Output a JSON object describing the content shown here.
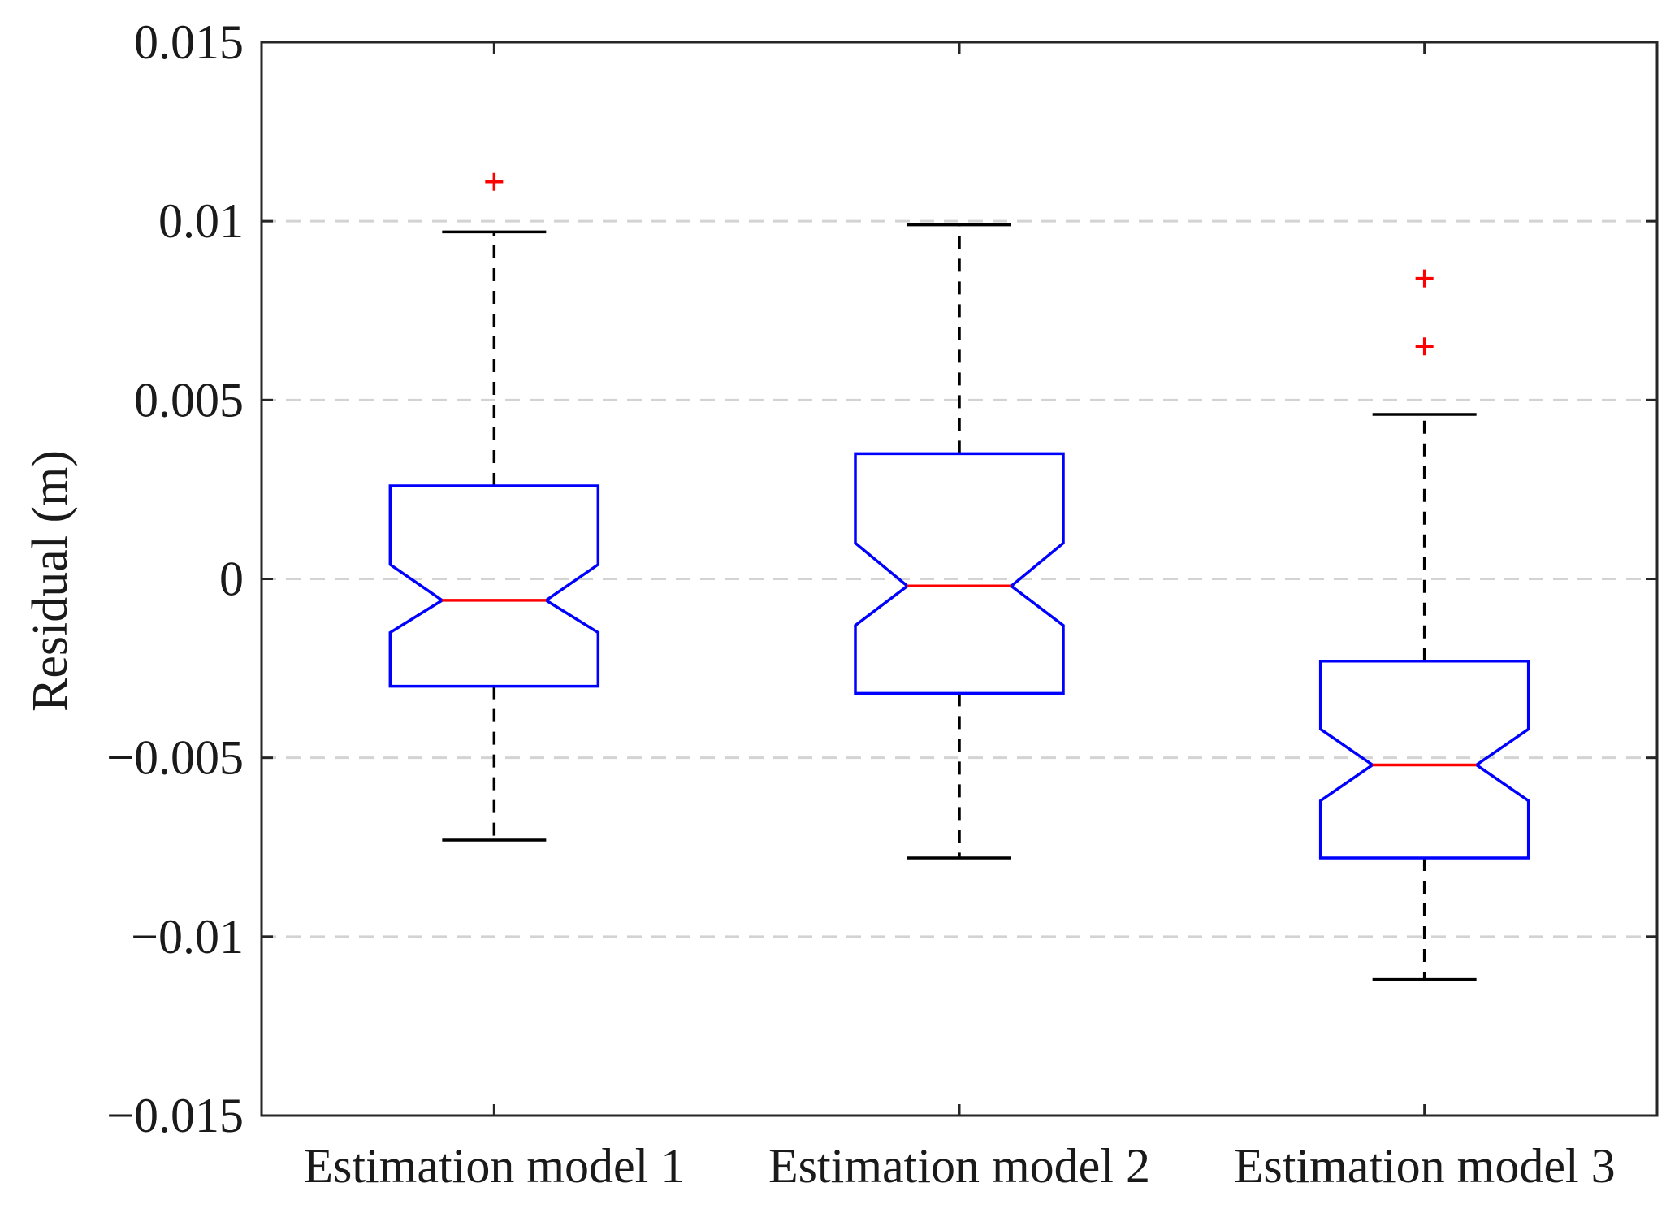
{
  "chart_data": {
    "type": "boxplot",
    "notched": true,
    "ylabel": "Residual (m)",
    "xlabel": "",
    "ylim": [
      -0.015,
      0.015
    ],
    "yticks": [
      0.015,
      0.01,
      0.005,
      0,
      -0.005,
      -0.01,
      -0.015
    ],
    "ytick_labels": [
      "0.015",
      "0.01",
      "0.005",
      "0",
      "−0.005",
      "−0.01",
      "−0.015"
    ],
    "grid": "horizontal dashed",
    "categories": [
      "Estimation model 1",
      "Estimation model 2",
      "Estimation model 3"
    ],
    "boxes": [
      {
        "name": "Estimation model 1",
        "whisker_low": -0.0073,
        "q1": -0.003,
        "median": -0.0006,
        "q3": 0.0026,
        "whisker_high": 0.0097,
        "notch_low": -0.0015,
        "notch_high": 0.0004,
        "outliers": [
          0.0111
        ]
      },
      {
        "name": "Estimation model 2",
        "whisker_low": -0.0078,
        "q1": -0.0032,
        "median": -0.0002,
        "q3": 0.0035,
        "whisker_high": 0.0099,
        "notch_low": -0.0013,
        "notch_high": 0.001,
        "outliers": []
      },
      {
        "name": "Estimation model 3",
        "whisker_low": -0.0112,
        "q1": -0.0078,
        "median": -0.0052,
        "q3": -0.0023,
        "whisker_high": 0.0046,
        "notch_low": -0.0062,
        "notch_high": -0.0042,
        "outliers": [
          0.0084,
          0.0065
        ]
      }
    ],
    "colors": {
      "box": "#0000ff",
      "median": "#ff0000",
      "outlier": "#ff0000",
      "whisker": "#000000",
      "grid": "#d3d3d3",
      "axis": "#262626"
    }
  }
}
